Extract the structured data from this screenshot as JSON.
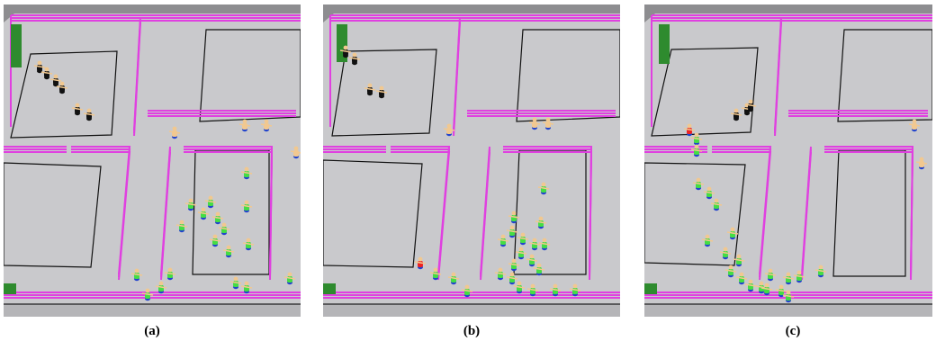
{
  "figure": {
    "panels": [
      {
        "caption": "(a)"
      },
      {
        "caption": "(b)"
      },
      {
        "caption": "(c)"
      }
    ]
  },
  "colors": {
    "floor": "#c9c9cc",
    "wall": "#e040e0",
    "room_outline": "#111111",
    "agent_shirt": "#44dd44",
    "agent_pants": "#2244cc",
    "agent_skin": "#f1c890",
    "agent_dark": "#111111",
    "agent_alert": "#ee2222",
    "door_green": "#2e8b2e"
  }
}
